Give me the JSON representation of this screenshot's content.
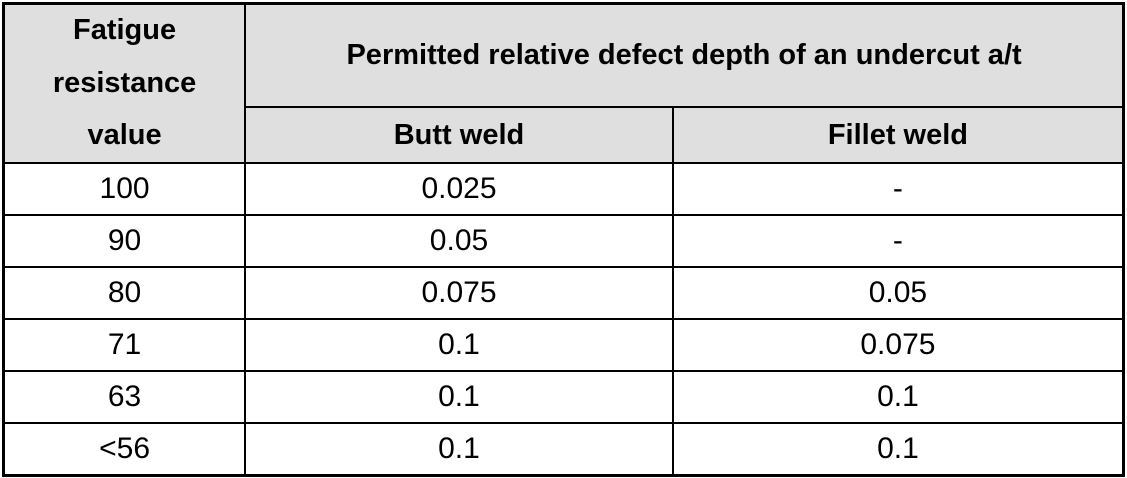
{
  "table": {
    "header": {
      "fatigue_col_label": "Fatigue resistance value",
      "fatigue_col_lines": [
        "Fatigue",
        "resistance",
        "value"
      ],
      "span_title": "Permitted relative defect depth of an undercut a/t",
      "sub_columns": [
        "Butt weld",
        "Fillet weld"
      ]
    },
    "rows": [
      {
        "fatigue": "100",
        "butt": "0.025",
        "fillet": "-"
      },
      {
        "fatigue": "90",
        "butt": "0.05",
        "fillet": "-"
      },
      {
        "fatigue": "80",
        "butt": "0.075",
        "fillet": "0.05"
      },
      {
        "fatigue": "71",
        "butt": "0.1",
        "fillet": "0.075"
      },
      {
        "fatigue": "63",
        "butt": "0.1",
        "fillet": "0.1"
      },
      {
        "fatigue": "<56",
        "butt": "0.1",
        "fillet": "0.1"
      }
    ],
    "colors": {
      "header_bg": "#dfdfdf",
      "body_bg": "#ffffff",
      "border": "#000000",
      "text": "#000000"
    }
  }
}
